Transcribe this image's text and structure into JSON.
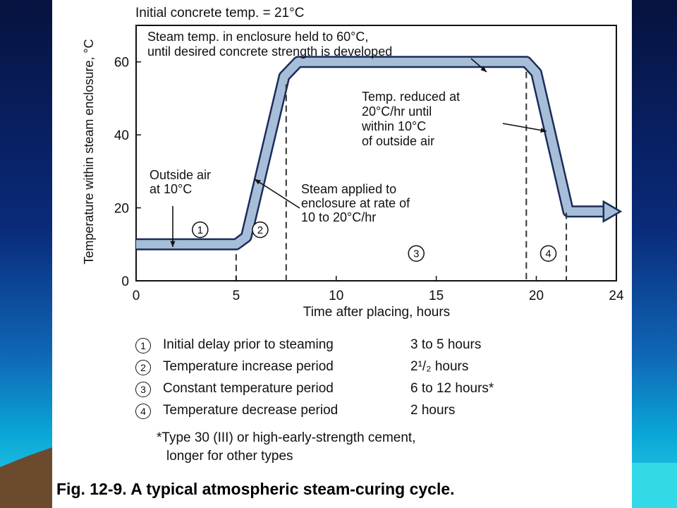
{
  "chart_data": {
    "type": "line",
    "title": "Initial concrete temp. = 21°C",
    "xlabel": "Time after placing, hours",
    "ylabel": "Temperature within steam enclosure, °C",
    "xlim": [
      0,
      24
    ],
    "ylim": [
      0,
      70
    ],
    "xticks": [
      0,
      5,
      10,
      15,
      20,
      24
    ],
    "yticks": [
      0,
      20,
      40,
      60
    ],
    "series": [
      {
        "x": [
          0,
          5,
          5.5,
          7.4,
          8.1,
          19.5,
          20.0,
          21.6,
          23.5
        ],
        "y": [
          10,
          10,
          12,
          56,
          60,
          60,
          57,
          19,
          19
        ]
      }
    ],
    "phase_boundaries": [
      5,
      7.5,
      19.5,
      21.5
    ],
    "phase_markers": [
      {
        "label": "1",
        "x": 3.2,
        "y": 14
      },
      {
        "label": "2",
        "x": 6.2,
        "y": 14
      },
      {
        "label": "3",
        "x": 14.0,
        "y": 7.5
      },
      {
        "label": "4",
        "x": 20.6,
        "y": 7.5
      }
    ],
    "annotations": [
      {
        "lines": [
          "Steam temp. in enclosure held to 60°C,",
          "until desired concrete strength is developed"
        ]
      },
      {
        "lines": [
          "Temp. reduced at",
          "20°C/hr until",
          "within 10°C",
          "of outside air"
        ]
      },
      {
        "lines": [
          "Outside air",
          "at 10°C"
        ]
      },
      {
        "lines": [
          "Steam applied to",
          "enclosure at rate of",
          "10 to 20°C/hr"
        ]
      }
    ],
    "colors": {
      "band_fill": "#a7bed8",
      "band_edge": "#1c2c5a"
    }
  },
  "legend": [
    {
      "num": "1",
      "desc": "Initial delay prior to steaming",
      "duration": "3 to 5 hours"
    },
    {
      "num": "2",
      "desc": "Temperature increase period",
      "duration": "2¹/₂ hours"
    },
    {
      "num": "3",
      "desc": "Constant temperature period",
      "duration": "6 to 12 hours*"
    },
    {
      "num": "4",
      "desc": "Temperature decrease period",
      "duration": "2 hours"
    }
  ],
  "footnote": [
    "*Type 30 (III) or high-early-strength cement,",
    "longer for other types"
  ],
  "caption": "Fig. 12-9. A typical atmospheric steam-curing cycle.",
  "theme": {
    "background_top": "#06123f",
    "background_bottom": "#2fd0e4",
    "panel": "#ffffff"
  }
}
